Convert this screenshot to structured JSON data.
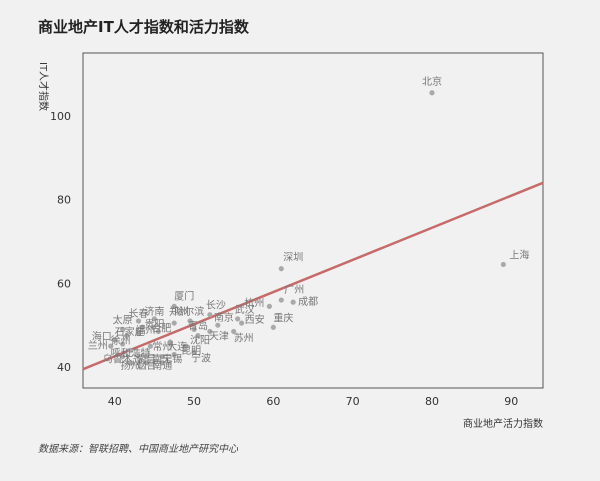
{
  "chart_data": {
    "type": "scatter",
    "title": "商业地产IT人才指数和活力指数",
    "xlabel": "商业地产活力指数",
    "ylabel": "IT人才指数",
    "xlim": [
      36,
      94
    ],
    "ylim": [
      35,
      115
    ],
    "xticks": [
      40,
      50,
      60,
      70,
      80,
      90
    ],
    "yticks": [
      40,
      60,
      80,
      100
    ],
    "points": [
      {
        "name": "北京",
        "x": 80,
        "y": 105.5
      },
      {
        "name": "上海",
        "x": 89,
        "y": 64.5
      },
      {
        "name": "深圳",
        "x": 61,
        "y": 63.5
      },
      {
        "name": "广州",
        "x": 61,
        "y": 56
      },
      {
        "name": "成都",
        "x": 62.5,
        "y": 55.5
      },
      {
        "name": "杭州",
        "x": 59.5,
        "y": 54.5
      },
      {
        "name": "重庆",
        "x": 60,
        "y": 49.5
      },
      {
        "name": "苏州",
        "x": 55,
        "y": 48.5
      },
      {
        "name": "西安",
        "x": 56,
        "y": 50.5
      },
      {
        "name": "武汉",
        "x": 55.5,
        "y": 51.5
      },
      {
        "name": "南京",
        "x": 53,
        "y": 50
      },
      {
        "name": "天津",
        "x": 52,
        "y": 48.5
      },
      {
        "name": "沈阳",
        "x": 50.5,
        "y": 47.5
      },
      {
        "name": "长沙",
        "x": 52,
        "y": 52.5
      },
      {
        "name": "郑州",
        "x": 49.5,
        "y": 51
      },
      {
        "name": "青岛",
        "x": 50,
        "y": 49
      },
      {
        "name": "哈尔滨",
        "x": 47.5,
        "y": 50.5
      },
      {
        "name": "厦门",
        "x": 47.5,
        "y": 54.5
      },
      {
        "name": "昆明",
        "x": 49,
        "y": 45
      },
      {
        "name": "宁波",
        "x": 50,
        "y": 43.5
      },
      {
        "name": "无锡",
        "x": 47.5,
        "y": 43
      },
      {
        "name": "大连",
        "x": 47,
        "y": 46
      },
      {
        "name": "合肥",
        "x": 45.5,
        "y": 48.5
      },
      {
        "name": "济南",
        "x": 45,
        "y": 51.5
      },
      {
        "name": "长春",
        "x": 43,
        "y": 51
      },
      {
        "name": "贵阳",
        "x": 43.5,
        "y": 49.5
      },
      {
        "name": "福州",
        "x": 43,
        "y": 48
      },
      {
        "name": "太原",
        "x": 41,
        "y": 49
      },
      {
        "name": "石家庄",
        "x": 41.5,
        "y": 47.5
      },
      {
        "name": "海口",
        "x": 40,
        "y": 46.5
      },
      {
        "name": "徐州",
        "x": 41,
        "y": 45.5
      },
      {
        "name": "兰州",
        "x": 39.5,
        "y": 45
      },
      {
        "name": "常州",
        "x": 44.5,
        "y": 45
      },
      {
        "name": "呼和浩特",
        "x": 42,
        "y": 44
      },
      {
        "name": "乌鲁木齐",
        "x": 41,
        "y": 42.5
      },
      {
        "name": "南昌",
        "x": 44,
        "y": 42.5
      },
      {
        "name": "南宁",
        "x": 46,
        "y": 42.5
      },
      {
        "name": "扬州",
        "x": 42,
        "y": 41
      },
      {
        "name": "烟台",
        "x": 44,
        "y": 41
      },
      {
        "name": "南通",
        "x": 46,
        "y": 41
      }
    ],
    "trendline": {
      "x": [
        36,
        94
      ],
      "y": [
        39.5,
        84
      ]
    },
    "colors": {
      "points": "#a9a9a9",
      "trendline": "#c66a6a",
      "background": "#f2f1f1"
    },
    "legend": "none"
  },
  "source": "数据来源：智联招聘、中国商业地产研究中心"
}
